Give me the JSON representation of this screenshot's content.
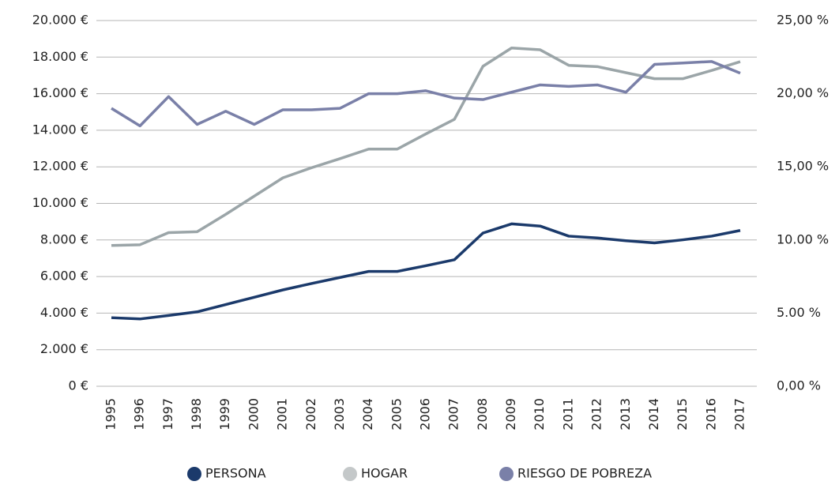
{
  "chart_data": {
    "type": "line",
    "categories": [
      "1995",
      "1996",
      "1997",
      "1998",
      "1999",
      "2000",
      "2001",
      "2002",
      "2003",
      "2004",
      "2005",
      "2006",
      "2007",
      "2008",
      "2009",
      "2010",
      "2011",
      "2012",
      "2013",
      "2014",
      "2015",
      "2016",
      "2017"
    ],
    "series": [
      {
        "name": "PERSONA",
        "color": "#1b3a6b",
        "values": [
          3750,
          3680,
          3870,
          4070,
          4470,
          4870,
          5270,
          5620,
          5950,
          6280,
          6280,
          6590,
          6920,
          8380,
          8880,
          8760,
          8210,
          8110,
          7960,
          7840,
          8010,
          8210,
          8520
        ]
      },
      {
        "name": "HOGAR",
        "color": "#9ba5a8",
        "values": [
          7700,
          7740,
          8400,
          8450,
          9400,
          10400,
          11400,
          11950,
          12450,
          12970,
          12970,
          13800,
          14600,
          17500,
          18500,
          18400,
          17550,
          17480,
          17150,
          16820,
          16820,
          17270,
          17750
        ]
      },
      {
        "name": "RIESGO DE POBREZA",
        "color": "#7a80a8",
        "axis": "y2",
        "values": [
          19.0,
          17.8,
          19.8,
          17.9,
          18.8,
          17.9,
          18.9,
          18.9,
          19.0,
          20.0,
          20.0,
          20.2,
          19.7,
          19.6,
          20.1,
          20.6,
          20.5,
          20.6,
          20.1,
          22.0,
          22.1,
          22.2,
          21.4
        ]
      }
    ],
    "ylim": [
      0,
      20000
    ],
    "yticks": [
      {
        "value": 0,
        "label": "0 €"
      },
      {
        "value": 2000,
        "label": "2.000 €"
      },
      {
        "value": 4000,
        "label": "4.000 €"
      },
      {
        "value": 6000,
        "label": "6.000 €"
      },
      {
        "value": 8000,
        "label": "8.000 €"
      },
      {
        "value": 10000,
        "label": "10.000 €"
      },
      {
        "value": 12000,
        "label": "12.000 €"
      },
      {
        "value": 14000,
        "label": "14.000 €"
      },
      {
        "value": 16000,
        "label": "16.000 €"
      },
      {
        "value": 18000,
        "label": "18.000 €"
      },
      {
        "value": 20000,
        "label": "20.000 €"
      }
    ],
    "y2lim": [
      0,
      25
    ],
    "y2ticks": [
      {
        "value": 0,
        "label": "0,00 %"
      },
      {
        "value": 5,
        "label": "5.00 %"
      },
      {
        "value": 10,
        "label": "10.00 %"
      },
      {
        "value": 15,
        "label": "15,00 %"
      },
      {
        "value": 20,
        "label": "20,00 %"
      },
      {
        "value": 25,
        "label": "25,00 %"
      }
    ],
    "grid": true,
    "legend": "bottom"
  }
}
